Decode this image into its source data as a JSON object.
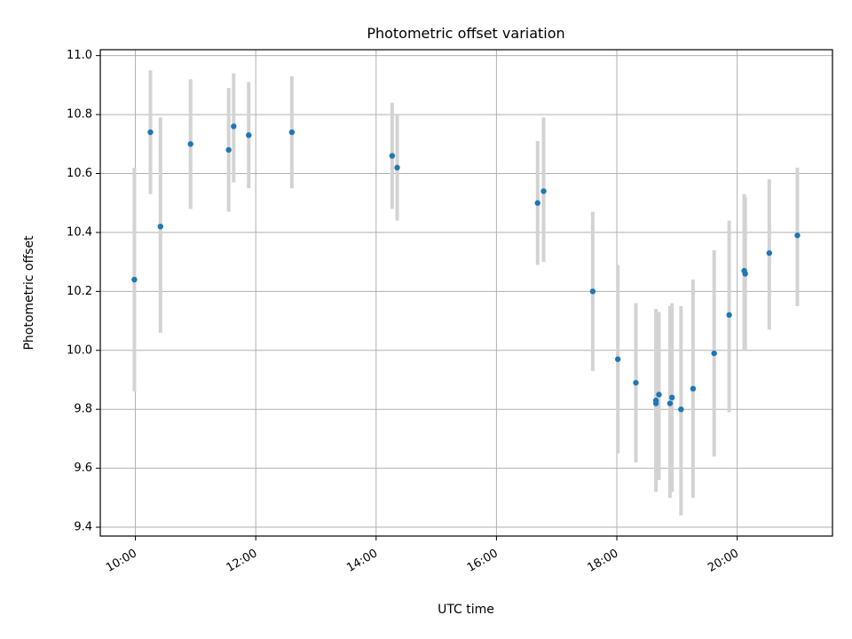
{
  "chart_data": {
    "type": "scatter",
    "title": "Photometric offset variation",
    "xlabel": "UTC time",
    "ylabel": "Photometric offset",
    "x_axis": "time",
    "xlim": [
      "09:25",
      "21:35"
    ],
    "ylim": [
      9.37,
      11.02
    ],
    "x_ticks": [
      "10:00",
      "12:00",
      "14:00",
      "16:00",
      "18:00",
      "20:00"
    ],
    "y_ticks": [
      "9.4",
      "9.6",
      "9.8",
      "10.0",
      "10.2",
      "10.4",
      "10.6",
      "10.8",
      "11.0"
    ],
    "y_tick_values": [
      9.4,
      9.6,
      9.8,
      10.0,
      10.2,
      10.4,
      10.6,
      10.8,
      11.0
    ],
    "grid": true,
    "colors": {
      "points": "#1f77b4",
      "error_bars": "#d3d3d3",
      "grid": "#b0b0b0"
    },
    "series": [
      {
        "points": [
          {
            "x": "09:59",
            "y": 10.24,
            "err_low": 9.86,
            "err_high": 10.62
          },
          {
            "x": "10:15",
            "y": 10.74,
            "err_low": 10.53,
            "err_high": 10.95
          },
          {
            "x": "10:25",
            "y": 10.42,
            "err_low": 10.06,
            "err_high": 10.79
          },
          {
            "x": "10:55",
            "y": 10.7,
            "err_low": 10.48,
            "err_high": 10.92
          },
          {
            "x": "11:33",
            "y": 10.68,
            "err_low": 10.47,
            "err_high": 10.89
          },
          {
            "x": "11:38",
            "y": 10.76,
            "err_low": 10.57,
            "err_high": 10.94
          },
          {
            "x": "11:53",
            "y": 10.73,
            "err_low": 10.55,
            "err_high": 10.91
          },
          {
            "x": "12:36",
            "y": 10.74,
            "err_low": 10.55,
            "err_high": 10.93
          },
          {
            "x": "14:16",
            "y": 10.66,
            "err_low": 10.48,
            "err_high": 10.84
          },
          {
            "x": "14:21",
            "y": 10.62,
            "err_low": 10.44,
            "err_high": 10.8
          },
          {
            "x": "16:41",
            "y": 10.5,
            "err_low": 10.29,
            "err_high": 10.71
          },
          {
            "x": "16:47",
            "y": 10.54,
            "err_low": 10.3,
            "err_high": 10.79
          },
          {
            "x": "17:36",
            "y": 10.2,
            "err_low": 9.93,
            "err_high": 10.47
          },
          {
            "x": "18:01",
            "y": 9.97,
            "err_low": 9.65,
            "err_high": 10.29
          },
          {
            "x": "18:19",
            "y": 9.89,
            "err_low": 9.62,
            "err_high": 10.16
          },
          {
            "x": "18:39",
            "y": 9.82,
            "err_low": 9.52,
            "err_high": 10.14
          },
          {
            "x": "18:39",
            "y": 9.83,
            "err_low": 9.53,
            "err_high": 10.13
          },
          {
            "x": "18:42",
            "y": 9.85,
            "err_low": 9.56,
            "err_high": 10.13
          },
          {
            "x": "18:53",
            "y": 9.82,
            "err_low": 9.5,
            "err_high": 10.15
          },
          {
            "x": "18:55",
            "y": 9.84,
            "err_low": 9.52,
            "err_high": 10.16
          },
          {
            "x": "19:04",
            "y": 9.8,
            "err_low": 9.44,
            "err_high": 10.15
          },
          {
            "x": "19:16",
            "y": 9.87,
            "err_low": 9.5,
            "err_high": 10.24
          },
          {
            "x": "19:37",
            "y": 9.99,
            "err_low": 9.64,
            "err_high": 10.34
          },
          {
            "x": "19:52",
            "y": 10.12,
            "err_low": 9.79,
            "err_high": 10.44
          },
          {
            "x": "20:07",
            "y": 10.27,
            "err_low": 10.0,
            "err_high": 10.53
          },
          {
            "x": "20:08",
            "y": 10.26,
            "err_low": 10.0,
            "err_high": 10.52
          },
          {
            "x": "20:32",
            "y": 10.33,
            "err_low": 10.07,
            "err_high": 10.58
          },
          {
            "x": "21:00",
            "y": 10.39,
            "err_low": 10.15,
            "err_high": 10.62
          }
        ]
      }
    ]
  }
}
